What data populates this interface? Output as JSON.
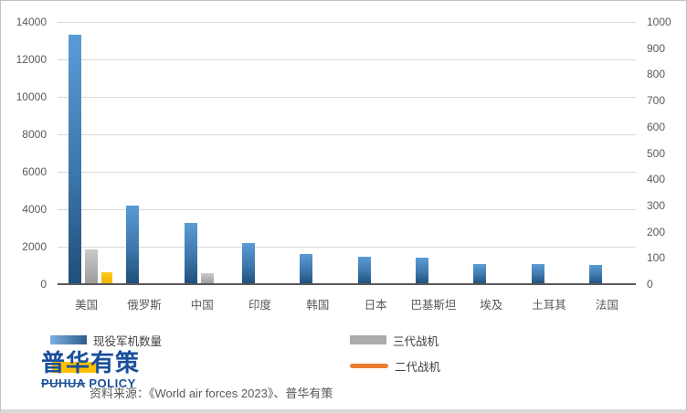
{
  "chart_data": {
    "type": "bar",
    "title": "",
    "categories": [
      "美国",
      "俄罗斯",
      "中国",
      "印度",
      "韩国",
      "日本",
      "巴基斯坦",
      "埃及",
      "土耳其",
      "法国"
    ],
    "series": [
      {
        "key": "active-aircraft",
        "name": "现役军机数量",
        "axis": "left",
        "color": "#5b9bd5",
        "values": [
          13300,
          4182,
          3284,
          2210,
          1595,
          1443,
          1434,
          1062,
          1057,
          1004
        ]
      },
      {
        "key": "gen3-fighter",
        "name": "三代战机",
        "axis": "left",
        "color": "#ababab",
        "values": [
          1850,
          0,
          600,
          0,
          0,
          0,
          0,
          0,
          0,
          0
        ]
      },
      {
        "key": "gen2-fighter",
        "name": "二代战机",
        "axis": "left",
        "color": "#ffc000",
        "values": [
          620,
          0,
          0,
          0,
          0,
          0,
          0,
          0,
          0,
          0
        ]
      }
    ],
    "left_axis": {
      "min": 0,
      "max": 14000,
      "step": 2000,
      "ticks": [
        "0",
        "2000",
        "4000",
        "6000",
        "8000",
        "10000",
        "12000",
        "14000"
      ]
    },
    "right_axis": {
      "min": 0,
      "max": 1000,
      "step": 100,
      "ticks": [
        "0",
        "100",
        "200",
        "300",
        "400",
        "500",
        "600",
        "700",
        "800",
        "900",
        "1000"
      ]
    },
    "grid": true,
    "legend_position": "bottom"
  },
  "legend": {
    "items": [
      {
        "label": "现役军机数量",
        "swatch": "blue-gradient-rect"
      },
      {
        "label": "三代战机",
        "swatch": "gray-rect"
      },
      {
        "label": "二代战机",
        "swatch": "orange-rounded-line"
      }
    ]
  },
  "source": {
    "text": "资料来源：《World air forces 2023》、普华有策"
  },
  "logo": {
    "cn": "普华有策",
    "en_word1": "PUHUA",
    "en_word2": "POLICY"
  },
  "colors": {
    "bar_blue_top": "#5b9bd5",
    "bar_blue_bottom": "#1f4e79",
    "bar_gray_top": "#c9c9c9",
    "bar_gray_bottom": "#9c9c9c",
    "bar_gold": "#ffc000",
    "legend_orange": "#ed7d31",
    "gridline": "#d9d9d9",
    "axis_line": "#595959",
    "tick_text": "#595959",
    "logo_blue": "#1a4f9c",
    "logo_highlight": "#ffc000"
  }
}
